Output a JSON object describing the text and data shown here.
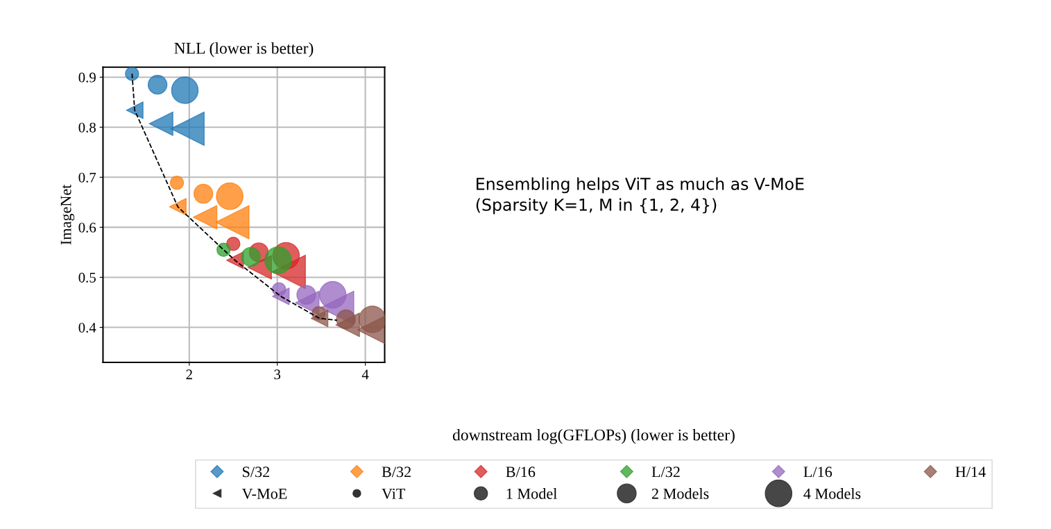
{
  "chart_data": {
    "type": "scatter",
    "title": "NLL (lower is better)",
    "ylabel": "ImageNet",
    "annotations": [
      "Ensembling helps ViT as much as V-MoE\n(Sparsity K=1, M in {1, 2, 4})",
      "downstream log(GFLOPs) (lower is better)",
      "V-MoE",
      "ViT"
    ],
    "xlim": [
      1.02,
      4.22
    ],
    "ylim": [
      0.33,
      0.92
    ],
    "xticks": [
      2,
      3,
      4
    ],
    "yticks": [
      0.4,
      0.5,
      0.6,
      0.7,
      0.8,
      0.9
    ],
    "grid": true,
    "legend": "bottom",
    "size_legend": [
      {
        "value": 1,
        "label": "1 Model"
      },
      {
        "value": 2,
        "label": "2 Models"
      },
      {
        "value": 4,
        "label": "4 Models"
      }
    ],
    "series": [
      {
        "type": "line",
        "color": "#000000",
        "line_style": "dashed",
        "marker": "none",
        "x": [
          1.35,
          1.38,
          1.87,
          2.39,
          2.52,
          3.04,
          3.48,
          3.68
        ],
        "values": [
          0.907,
          0.834,
          0.641,
          0.555,
          0.534,
          0.462,
          0.418,
          0.414
        ]
      },
      {
        "name": "S/32",
        "color": "#1f77b4",
        "marker": "circle",
        "x": [
          1.35,
          1.64,
          1.95
        ],
        "values": [
          0.907,
          0.885,
          0.874
        ],
        "sizes": [
          1,
          2,
          4
        ]
      },
      {
        "color": "#1f77b4",
        "marker": "triangle",
        "x": [
          1.38,
          1.68,
          1.98
        ],
        "values": [
          0.834,
          0.807,
          0.797
        ],
        "sizes": [
          1,
          2,
          4
        ]
      },
      {
        "name": "B/32",
        "color": "#ff7f0e",
        "marker": "circle",
        "x": [
          1.86,
          2.16,
          2.46
        ],
        "values": [
          0.689,
          0.667,
          0.662
        ],
        "sizes": [
          1,
          2,
          4
        ]
      },
      {
        "color": "#ff7f0e",
        "marker": "triangle",
        "x": [
          1.87,
          2.18,
          2.49
        ],
        "values": [
          0.641,
          0.62,
          0.61
        ],
        "sizes": [
          1,
          2,
          4
        ]
      },
      {
        "name": "B/16",
        "color": "#d62728",
        "marker": "circle",
        "x": [
          2.5,
          2.79,
          3.1
        ],
        "values": [
          0.567,
          0.55,
          0.543
        ],
        "sizes": [
          1,
          2,
          4
        ]
      },
      {
        "color": "#d62728",
        "marker": "triangle",
        "x": [
          2.52,
          2.8,
          3.13
        ],
        "values": [
          0.534,
          0.52,
          0.511
        ],
        "sizes": [
          1,
          2,
          4
        ]
      },
      {
        "name": "L/32",
        "color": "#2ca02c",
        "marker": "circle",
        "x": [
          2.39,
          2.7,
          3.01
        ],
        "values": [
          0.555,
          0.541,
          0.534
        ],
        "sizes": [
          1,
          2,
          4
        ]
      },
      {
        "name": "L/16",
        "color": "#9467bd",
        "marker": "circle",
        "x": [
          3.02,
          3.33,
          3.63
        ],
        "values": [
          0.476,
          0.465,
          0.465
        ],
        "sizes": [
          1,
          2,
          4
        ]
      },
      {
        "color": "#9467bd",
        "marker": "triangle",
        "x": [
          3.04,
          3.34,
          3.68
        ],
        "values": [
          0.462,
          0.449,
          0.439
        ],
        "sizes": [
          1,
          2,
          4
        ]
      },
      {
        "name": "H/14",
        "color": "#8c564b",
        "marker": "circle",
        "x": [
          3.47,
          3.78,
          4.08
        ],
        "values": [
          0.428,
          0.416,
          0.416
        ],
        "sizes": [
          1,
          2,
          4
        ]
      },
      {
        "color": "#8c564b",
        "marker": "triangle",
        "x": [
          3.48,
          3.8,
          4.1
        ],
        "values": [
          0.418,
          0.405,
          0.395
        ],
        "sizes": [
          1,
          2,
          4
        ]
      }
    ]
  }
}
